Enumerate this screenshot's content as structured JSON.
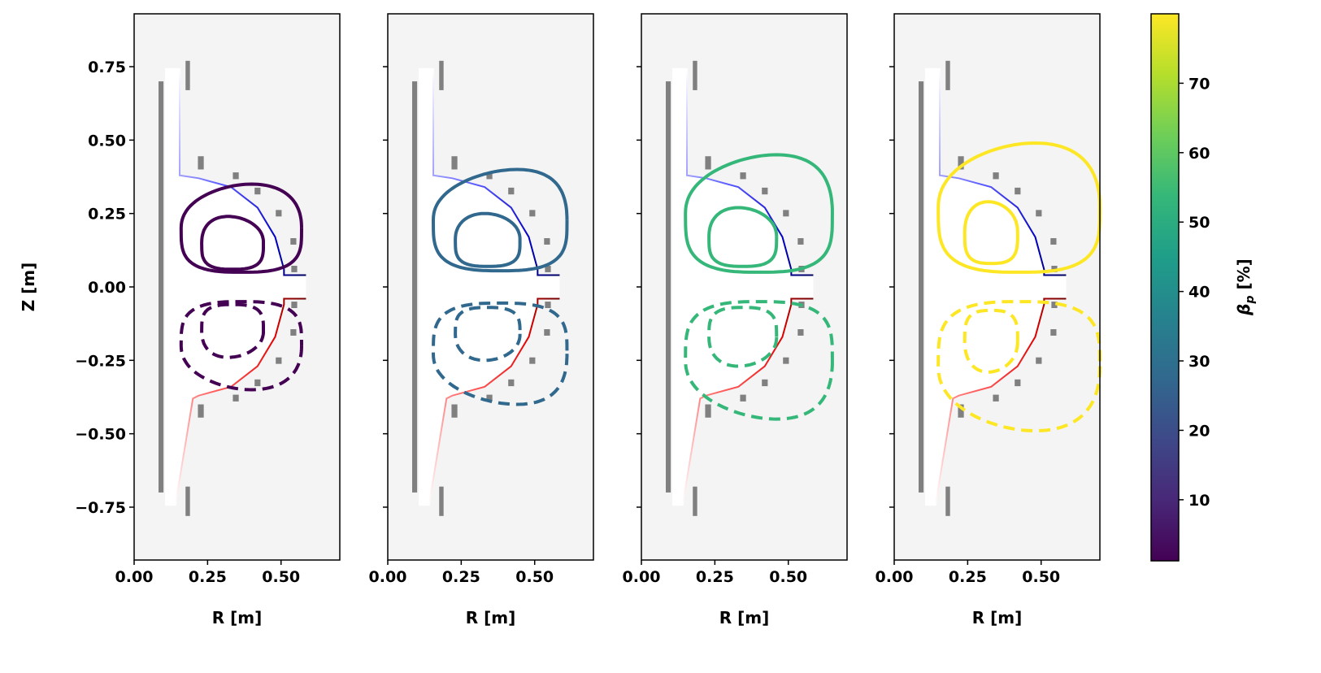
{
  "chart_data": {
    "type": "line",
    "title": "",
    "xlabel": "R [m]",
    "ylabel": "Z [m]",
    "xlim": [
      0,
      0.7
    ],
    "ylim": [
      -0.93,
      0.93
    ],
    "xticks": [
      0,
      0.25,
      0.5
    ],
    "xtick_labels": [
      "0.00",
      "0.25",
      "0.50"
    ],
    "yticks": [
      0.75,
      0.5,
      0.25,
      0,
      -0.25,
      -0.5,
      -0.75
    ],
    "ytick_labels": [
      "0.75",
      "0.50",
      "0.25",
      "0.00",
      "−0.25",
      "−0.50",
      "−0.75"
    ],
    "background_color": "#f4f4f4",
    "coil_color": "#808080",
    "upper_wall_color": "#0000cc",
    "lower_wall_color": "#cc0000",
    "coils": [
      {
        "r": [
          0.175,
          0.19
        ],
        "z": [
          0.67,
          0.77
        ]
      },
      {
        "r": [
          0.217,
          0.237
        ],
        "z": [
          0.4,
          0.445
        ]
      },
      {
        "r": [
          0.336,
          0.356
        ],
        "z": [
          0.367,
          0.39
        ]
      },
      {
        "r": [
          0.41,
          0.43
        ],
        "z": [
          0.315,
          0.338
        ]
      },
      {
        "r": [
          0.482,
          0.502
        ],
        "z": [
          0.24,
          0.262
        ]
      },
      {
        "r": [
          0.532,
          0.552
        ],
        "z": [
          0.144,
          0.166
        ]
      },
      {
        "r": [
          0.535,
          0.555
        ],
        "z": [
          0.05,
          0.072
        ]
      },
      {
        "r": [
          0.175,
          0.19
        ],
        "z": [
          -0.78,
          -0.68
        ]
      },
      {
        "r": [
          0.217,
          0.237
        ],
        "z": [
          -0.445,
          -0.4
        ]
      },
      {
        "r": [
          0.336,
          0.356
        ],
        "z": [
          -0.39,
          -0.367
        ]
      },
      {
        "r": [
          0.41,
          0.43
        ],
        "z": [
          -0.338,
          -0.315
        ]
      },
      {
        "r": [
          0.482,
          0.502
        ],
        "z": [
          -0.262,
          -0.24
        ]
      },
      {
        "r": [
          0.532,
          0.552
        ],
        "z": [
          -0.166,
          -0.144
        ]
      },
      {
        "r": [
          0.535,
          0.555
        ],
        "z": [
          -0.072,
          -0.05
        ]
      }
    ],
    "central_rod": {
      "r": [
        0.083,
        0.1
      ],
      "z": [
        -0.7,
        0.7
      ]
    },
    "panels": [
      {
        "beta_p": 1.5,
        "color": "#440154",
        "contours": [
          {
            "r_min": 0.16,
            "r_max": 0.57,
            "z_min": 0.05,
            "z_max": 0.35,
            "r_peak": 0.4
          },
          {
            "r_min": 0.23,
            "r_max": 0.44,
            "z_min": 0.06,
            "z_max": 0.24,
            "r_peak": 0.32
          }
        ]
      },
      {
        "beta_p": 30,
        "color": "#31688e",
        "contours": [
          {
            "r_min": 0.155,
            "r_max": 0.61,
            "z_min": 0.055,
            "z_max": 0.4,
            "r_peak": 0.44
          },
          {
            "r_min": 0.23,
            "r_max": 0.45,
            "z_min": 0.07,
            "z_max": 0.25,
            "r_peak": 0.33
          }
        ]
      },
      {
        "beta_p": 56,
        "color": "#35b779",
        "contours": [
          {
            "r_min": 0.15,
            "r_max": 0.65,
            "z_min": 0.05,
            "z_max": 0.45,
            "r_peak": 0.46
          },
          {
            "r_min": 0.23,
            "r_max": 0.46,
            "z_min": 0.07,
            "z_max": 0.27,
            "r_peak": 0.33
          }
        ]
      },
      {
        "beta_p": 80,
        "color": "#fde725",
        "contours": [
          {
            "r_min": 0.15,
            "r_max": 0.7,
            "z_min": 0.05,
            "z_max": 0.49,
            "r_peak": 0.48
          },
          {
            "r_min": 0.24,
            "r_max": 0.42,
            "z_min": 0.08,
            "z_max": 0.29,
            "r_peak": 0.32
          }
        ]
      }
    ],
    "colorbar": {
      "label": "β",
      "label_sub": "p",
      "label_unit": " [%]",
      "range": [
        1.2,
        80
      ],
      "ticks": [
        10,
        20,
        30,
        40,
        50,
        60,
        70
      ],
      "tick_labels": [
        "10",
        "20",
        "30",
        "40",
        "50",
        "60",
        "70"
      ],
      "colormap": [
        "#440154",
        "#482878",
        "#3e4989",
        "#31688e",
        "#26828e",
        "#1f9e89",
        "#35b779",
        "#6ece58",
        "#b5de2b",
        "#fde725"
      ]
    },
    "legend": "none",
    "grid": false
  }
}
